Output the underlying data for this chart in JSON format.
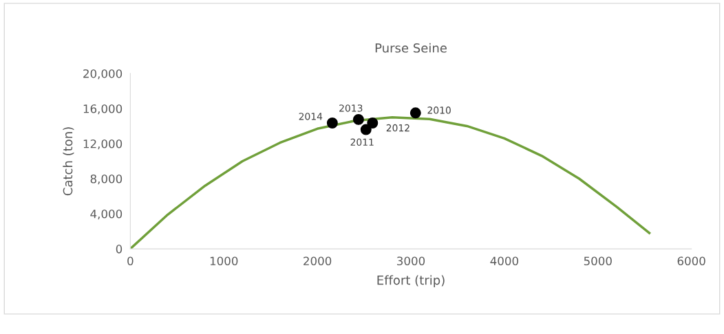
{
  "chart_data": {
    "type": "scatter",
    "title": "Purse Seine",
    "xlabel": "Effort (trip)",
    "ylabel": "Catch (ton)",
    "xlim": [
      0,
      6000
    ],
    "xticks": [
      0,
      1000,
      2000,
      3000,
      4000,
      5000,
      6000
    ],
    "ylim": [
      0,
      20000
    ],
    "yticks": [
      {
        "value": 0,
        "label": "0"
      },
      {
        "value": 4000,
        "label": "4,000"
      },
      {
        "value": 8000,
        "label": "8,000"
      },
      {
        "value": 12000,
        "label": "12,000"
      },
      {
        "value": 16000,
        "label": "16,000"
      },
      {
        "value": 20000,
        "label": "20,000"
      }
    ],
    "grid": false,
    "legend": false,
    "series": [
      {
        "type": "line",
        "color": "#70a03a",
        "marker": "none",
        "line_style": "solid",
        "x": [
          0,
          400,
          800,
          1200,
          1600,
          2000,
          2400,
          2800,
          3200,
          3600,
          4000,
          4400,
          4800,
          5200,
          5550
        ],
        "values": [
          0,
          3900,
          7200,
          10000,
          12100,
          13700,
          14600,
          15000,
          14800,
          14000,
          12600,
          10600,
          8000,
          4800,
          1800
        ]
      },
      {
        "color": "#000000",
        "marker": "circle",
        "x": [
          3050,
          2520,
          2590,
          2440,
          2160
        ],
        "values": [
          15500,
          13600,
          14350,
          14750,
          14350
        ]
      }
    ],
    "annotations": [
      {
        "text": "2010",
        "x": 3050,
        "y": 15500
      },
      {
        "text": "2011",
        "x": 2520,
        "y": 13600
      },
      {
        "text": "2012",
        "x": 2590,
        "y": 14350
      },
      {
        "text": "2013",
        "x": 2440,
        "y": 14750
      },
      {
        "text": "2014",
        "x": 2160,
        "y": 14350
      }
    ]
  }
}
